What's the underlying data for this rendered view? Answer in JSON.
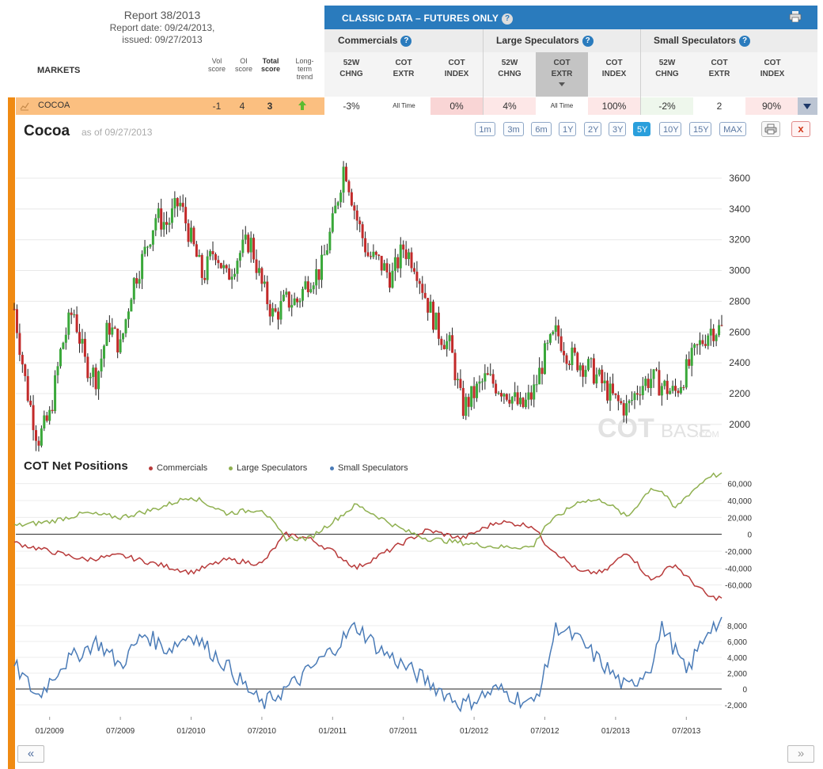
{
  "report": {
    "title": "Report 38/2013",
    "date_line": "Report date: 09/24/2013,",
    "issued_line": "issued: 09/27/2013"
  },
  "table": {
    "markets_label": "MARKETS",
    "vol_label_1": "Vol",
    "vol_label_2": "score",
    "oi_label_1": "OI",
    "oi_label_2": "score",
    "total_label_1": "Total",
    "total_label_2": "score",
    "trend_label_1": "Long-",
    "trend_label_2": "term",
    "trend_label_3": "trend",
    "classic_title": "CLASSIC DATA – FUTURES ONLY",
    "groups": [
      "Commercials",
      "Large Speculators",
      "Small Speculators"
    ],
    "sub": {
      "a1": "52W",
      "a2": "CHNG",
      "b1": "COT",
      "b2": "EXTR",
      "c1": "COT",
      "c2": "INDEX"
    },
    "row": {
      "name": "COCOA",
      "vol": "-1",
      "oi": "4",
      "total": "3",
      "comm_chng": "-3%",
      "comm_extr": "All Time",
      "comm_index": "0%",
      "large_chng": "4%",
      "large_extr": "All Time",
      "large_index": "100%",
      "small_chng": "-2%",
      "small_extr": "2",
      "small_index": "90%"
    }
  },
  "chart": {
    "title": "Cocoa",
    "asof": "as of 09/27/2013",
    "ranges": [
      "1m",
      "3m",
      "6m",
      "1Y",
      "2Y",
      "3Y",
      "5Y",
      "10Y",
      "15Y",
      "MAX"
    ],
    "active_range": "5Y",
    "close_label": "x",
    "watermark_main": "COT",
    "watermark_sub": "BASE",
    "watermark_dom": ".COM",
    "cot_title": "COT Net Positions",
    "legend": [
      "Commercials",
      "Large Speculators",
      "Small Speculators"
    ],
    "colors": {
      "commercials": "#b83b3b",
      "large": "#8fb050",
      "small": "#4a7bb7",
      "up": "#3aa83a",
      "down": "#c22a2a"
    },
    "x_labels": [
      "01/2009",
      "07/2009",
      "01/2010",
      "07/2010",
      "01/2011",
      "07/2011",
      "01/2012",
      "07/2012",
      "01/2013",
      "07/2013"
    ],
    "nav_prev": "«",
    "nav_next": "»"
  },
  "chart_data": [
    {
      "type": "candlestick",
      "title": "Cocoa",
      "y_ticks": [
        2000,
        2200,
        2400,
        2600,
        2800,
        3000,
        3200,
        3400,
        3600
      ],
      "ylim": [
        1850,
        3780
      ],
      "price_path": [
        [
          "10/2008",
          2750
        ],
        [
          "11/2008",
          2250
        ],
        [
          "12/2008",
          1900
        ],
        [
          "01/2009",
          2050
        ],
        [
          "02/2009",
          2500
        ],
        [
          "03/2009",
          2750
        ],
        [
          "04/2009",
          2400
        ],
        [
          "05/2009",
          2300
        ],
        [
          "06/2009",
          2650
        ],
        [
          "07/2009",
          2500
        ],
        [
          "08/2009",
          2900
        ],
        [
          "09/2009",
          3100
        ],
        [
          "10/2009",
          3350
        ],
        [
          "11/2009",
          3300
        ],
        [
          "12/2009",
          3450
        ],
        [
          "01/2010",
          3200
        ],
        [
          "02/2010",
          2950
        ],
        [
          "03/2010",
          3150
        ],
        [
          "04/2010",
          2950
        ],
        [
          "05/2010",
          3100
        ],
        [
          "06/2010",
          3200
        ],
        [
          "07/2010",
          2900
        ],
        [
          "08/2010",
          2700
        ],
        [
          "09/2010",
          2800
        ],
        [
          "10/2010",
          2800
        ],
        [
          "11/2010",
          2950
        ],
        [
          "12/2010",
          3000
        ],
        [
          "01/2011",
          3300
        ],
        [
          "02/2011",
          3700
        ],
        [
          "03/2011",
          3350
        ],
        [
          "04/2011",
          3100
        ],
        [
          "05/2011",
          3050
        ],
        [
          "06/2011",
          2950
        ],
        [
          "07/2011",
          3150
        ],
        [
          "08/2011",
          3050
        ],
        [
          "09/2011",
          2800
        ],
        [
          "10/2011",
          2600
        ],
        [
          "11/2011",
          2500
        ],
        [
          "12/2011",
          2100
        ],
        [
          "01/2012",
          2200
        ],
        [
          "02/2012",
          2300
        ],
        [
          "03/2012",
          2250
        ],
        [
          "04/2012",
          2200
        ],
        [
          "05/2012",
          2100
        ],
        [
          "06/2012",
          2200
        ],
        [
          "07/2012",
          2450
        ],
        [
          "08/2012",
          2600
        ],
        [
          "09/2012",
          2450
        ],
        [
          "10/2012",
          2400
        ],
        [
          "11/2012",
          2350
        ],
        [
          "12/2012",
          2250
        ],
        [
          "01/2013",
          2150
        ],
        [
          "02/2013",
          2100
        ],
        [
          "03/2013",
          2250
        ],
        [
          "04/2013",
          2300
        ],
        [
          "05/2013",
          2250
        ],
        [
          "06/2013",
          2200
        ],
        [
          "07/2013",
          2350
        ],
        [
          "08/2013",
          2500
        ],
        [
          "09/2013",
          2620
        ]
      ]
    },
    {
      "type": "line",
      "title": "COT Net Positions",
      "y_ticks": [
        -60000,
        -40000,
        -20000,
        0,
        20000,
        40000,
        60000
      ],
      "series": [
        {
          "name": "Commercials",
          "values": [
            [
              "10/2008",
              -10000
            ],
            [
              "01/2009",
              -20000
            ],
            [
              "04/2009",
              -30000
            ],
            [
              "07/2009",
              -25000
            ],
            [
              "10/2009",
              -35000
            ],
            [
              "01/2010",
              -45000
            ],
            [
              "04/2010",
              -30000
            ],
            [
              "07/2010",
              -35000
            ],
            [
              "09/2010",
              0
            ],
            [
              "10/2010",
              -2000
            ],
            [
              "11/2010",
              -5000
            ],
            [
              "01/2011",
              -20000
            ],
            [
              "03/2011",
              -40000
            ],
            [
              "07/2011",
              -10000
            ],
            [
              "09/2011",
              5000
            ],
            [
              "12/2011",
              -5000
            ],
            [
              "03/2012",
              15000
            ],
            [
              "06/2012",
              10000
            ],
            [
              "07/2012",
              -10000
            ],
            [
              "10/2012",
              -45000
            ],
            [
              "12/2012",
              -45000
            ],
            [
              "02/2013",
              -20000
            ],
            [
              "04/2013",
              -55000
            ],
            [
              "05/2013",
              -45000
            ],
            [
              "06/2013",
              -35000
            ],
            [
              "07/2013",
              -50000
            ],
            [
              "09/2013",
              -75000
            ]
          ]
        },
        {
          "name": "Large Speculators",
          "values": [
            [
              "10/2008",
              10000
            ],
            [
              "01/2009",
              15000
            ],
            [
              "04/2009",
              25000
            ],
            [
              "07/2009",
              20000
            ],
            [
              "10/2009",
              30000
            ],
            [
              "01/2010",
              45000
            ],
            [
              "04/2010",
              25000
            ],
            [
              "07/2010",
              30000
            ],
            [
              "09/2010",
              -5000
            ],
            [
              "11/2010",
              -5000
            ],
            [
              "01/2011",
              15000
            ],
            [
              "03/2011",
              35000
            ],
            [
              "07/2011",
              5000
            ],
            [
              "09/2011",
              -5000
            ],
            [
              "12/2011",
              -10000
            ],
            [
              "03/2012",
              -15000
            ],
            [
              "06/2012",
              -15000
            ],
            [
              "07/2012",
              10000
            ],
            [
              "10/2012",
              40000
            ],
            [
              "12/2012",
              40000
            ],
            [
              "02/2013",
              20000
            ],
            [
              "04/2013",
              55000
            ],
            [
              "05/2013",
              50000
            ],
            [
              "06/2013",
              30000
            ],
            [
              "07/2013",
              45000
            ],
            [
              "09/2013",
              70000
            ]
          ]
        },
        {
          "name": "Small Speculators",
          "values": [
            [
              "10/2008",
              3000
            ],
            [
              "12/2008",
              -1000
            ],
            [
              "02/2009",
              3000
            ],
            [
              "05/2009",
              6000
            ],
            [
              "07/2009",
              3000
            ],
            [
              "09/2009",
              7000
            ],
            [
              "11/2009",
              5000
            ],
            [
              "01/2010",
              7000
            ],
            [
              "04/2010",
              3000
            ],
            [
              "07/2010",
              -2000
            ],
            [
              "10/2010",
              1000
            ],
            [
              "01/2011",
              5000
            ],
            [
              "03/2011",
              8000
            ],
            [
              "05/2011",
              5000
            ],
            [
              "07/2011",
              3000
            ],
            [
              "10/2011",
              0
            ],
            [
              "12/2011",
              -2000
            ],
            [
              "03/2012",
              0
            ],
            [
              "06/2012",
              -2000
            ],
            [
              "07/2012",
              2000
            ],
            [
              "08/2012",
              8000
            ],
            [
              "10/2012",
              6000
            ],
            [
              "12/2012",
              3000
            ],
            [
              "02/2013",
              0
            ],
            [
              "04/2013",
              3000
            ],
            [
              "05/2013",
              8000
            ],
            [
              "07/2013",
              2000
            ],
            [
              "09/2013",
              8000
            ]
          ]
        }
      ],
      "small_y_ticks": [
        -2000,
        0,
        2000,
        4000,
        6000,
        8000
      ]
    }
  ]
}
